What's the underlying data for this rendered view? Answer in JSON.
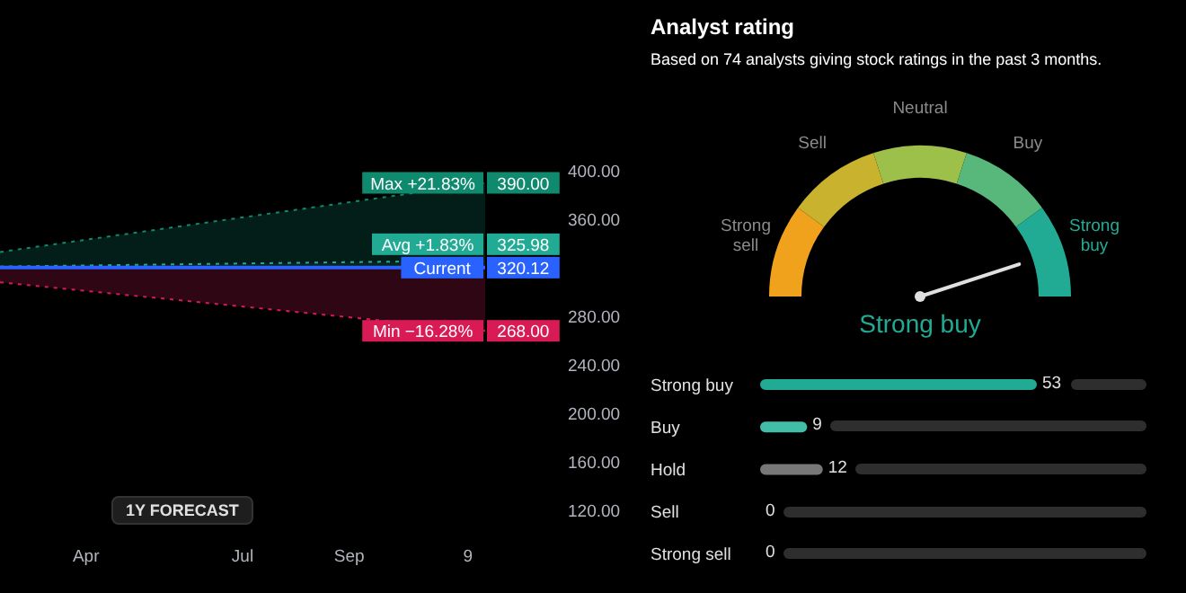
{
  "chart_data": [
    {
      "type": "line",
      "annotations": [
        {
          "text": "Max +21.83%",
          "x": "--11-19",
          "y": 390
        },
        {
          "text": "Avg +1.83%",
          "x": "--11-19",
          "y": 325.98
        },
        {
          "text": "Current",
          "x": "--11-19",
          "y": 320.12
        },
        {
          "text": "Min −16.28%",
          "x": "--11-19",
          "y": 268
        },
        "1Y FORECAST"
      ],
      "xlim": [
        "--02-10",
        "--11-19"
      ],
      "xticks": [
        {
          "value": "--04-01",
          "label": "Apr"
        },
        {
          "value": "--07-01",
          "label": "Jul"
        },
        {
          "value": "--09-01",
          "label": "Sep"
        },
        {
          "value": "--11-09",
          "label": "9"
        }
      ],
      "ylim": [
        120,
        400
      ],
      "yticks": [
        {
          "value": 120,
          "label": "120.00"
        },
        {
          "value": 160,
          "label": "160.00"
        },
        {
          "value": 200,
          "label": "200.00"
        },
        {
          "value": 240,
          "label": "240.00"
        },
        {
          "value": 280,
          "label": "280.00"
        },
        {
          "value": 360,
          "label": "360.00"
        },
        {
          "value": 400,
          "label": "400.00"
        }
      ],
      "series": [
        {
          "color": "#0f8a6e",
          "line_style": "dotted",
          "x": [
            "--02-10",
            "--11-19"
          ],
          "values": [
            333,
            390
          ],
          "value_labels": [
            null,
            "390.00"
          ]
        },
        {
          "color": "#22ab94",
          "line_style": "dotted",
          "x": [
            "--02-10",
            "--11-19"
          ],
          "values": [
            321,
            325.98
          ],
          "value_labels": [
            null,
            "325.98"
          ]
        },
        {
          "color": "#2962ff",
          "line_style": "solid",
          "x": [
            "--02-10",
            "--11-19"
          ],
          "values": [
            320.12,
            320.12
          ],
          "value_labels": [
            null,
            "320.12"
          ]
        },
        {
          "color": "#d81b55",
          "line_style": "dotted",
          "x": [
            "--02-10",
            "--11-19"
          ],
          "values": [
            308,
            268
          ],
          "value_labels": [
            null,
            "268.00"
          ]
        }
      ]
    },
    {
      "type": "other",
      "title": "Analyst rating",
      "subtitle": "Based on 74 analysts giving stock ratings in the past 3 months.",
      "categories": [
        "Strong sell",
        "Sell",
        "Neutral",
        "Buy",
        "Strong buy"
      ],
      "colors": [
        "#f0a21c",
        "#c9b22e",
        "#9cc04a",
        "#58b77a",
        "#22ab94"
      ],
      "needle": "Strong buy"
    },
    {
      "type": "bar",
      "orientation": "horizontal",
      "categories": [
        "Strong buy",
        "Buy",
        "Hold",
        "Sell",
        "Strong sell"
      ],
      "values": [
        53,
        9,
        12,
        0,
        0
      ],
      "colors": [
        "#22ab94",
        "#42bda8",
        "#787878",
        "#787878",
        "#787878"
      ],
      "value_labels": [
        "53",
        "9",
        "12",
        "0",
        "0"
      ]
    }
  ]
}
